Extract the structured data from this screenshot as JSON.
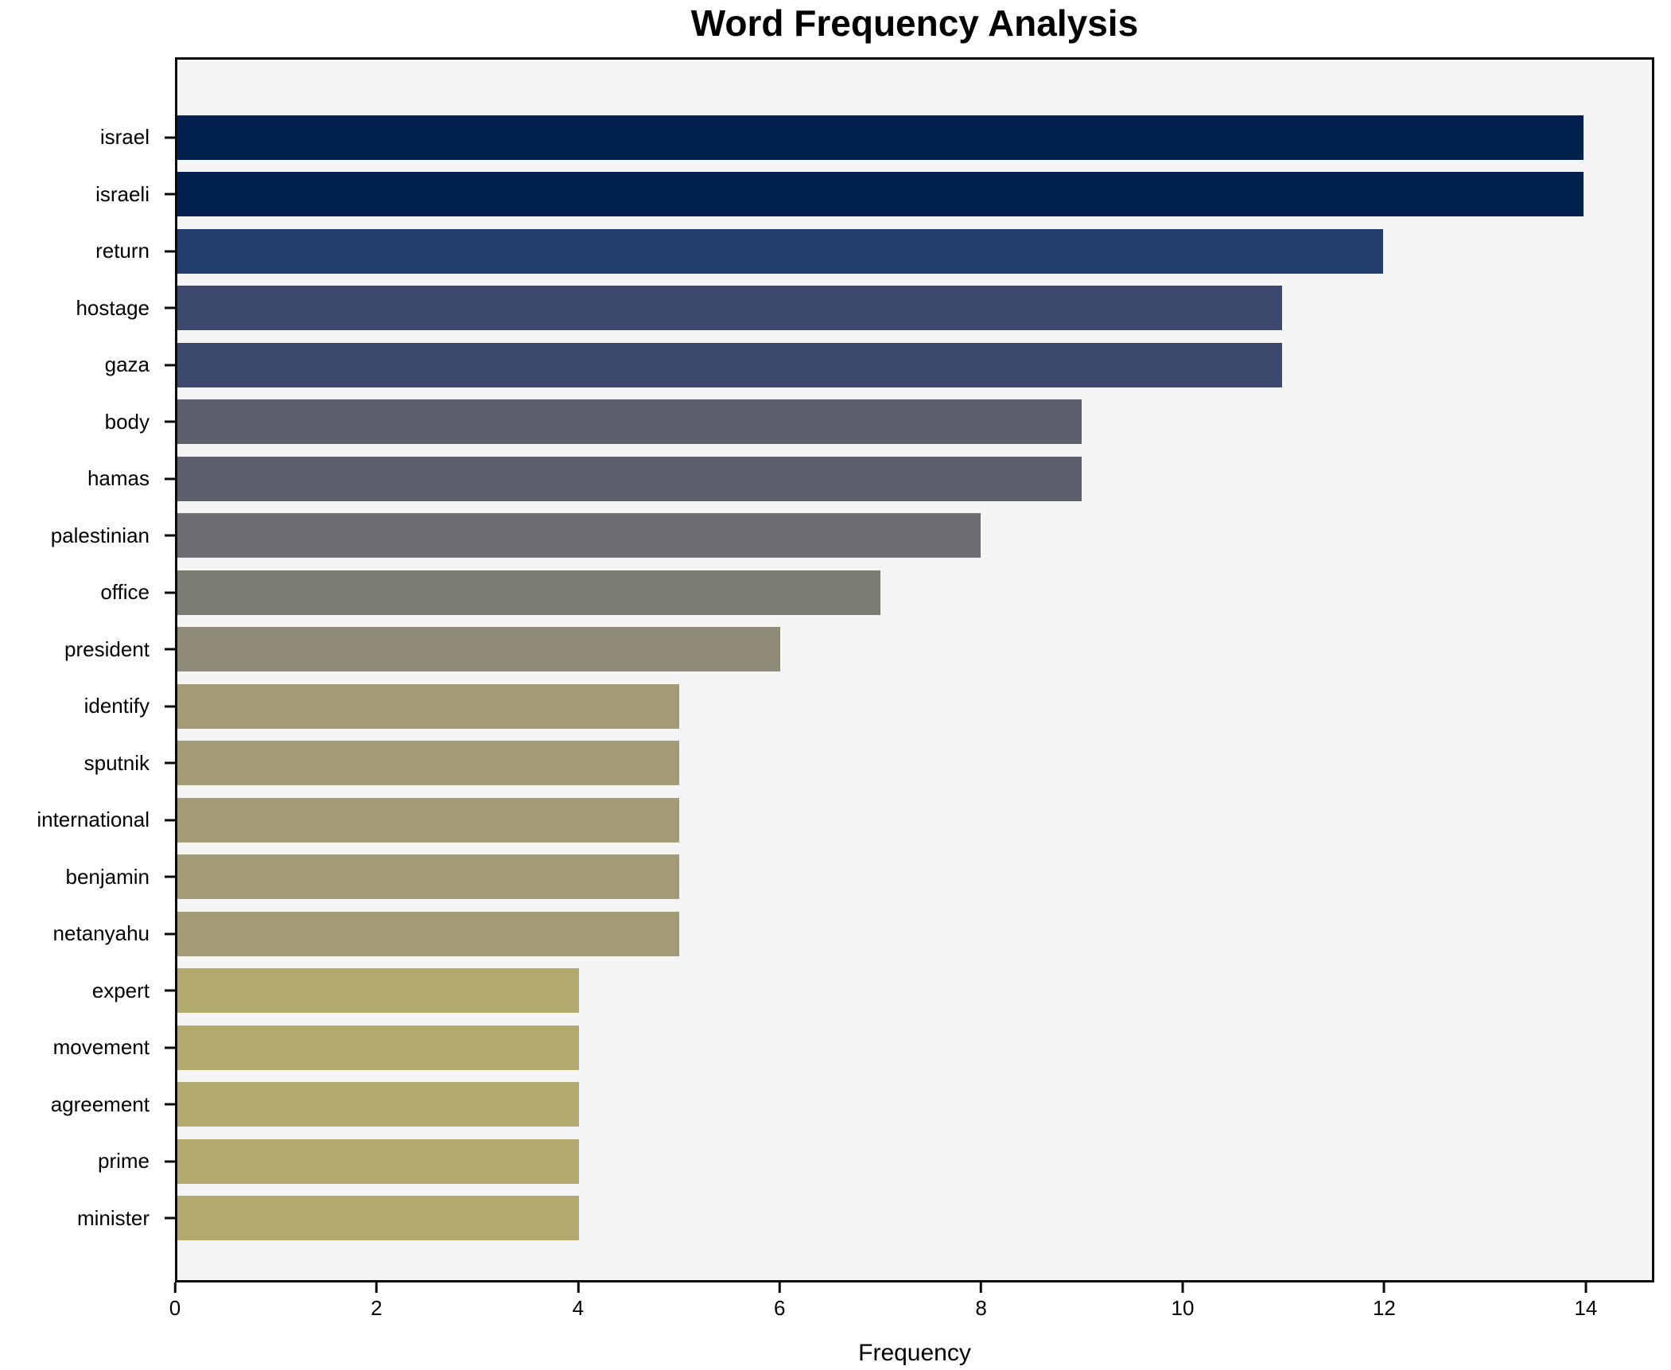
{
  "title": "Word Frequency Analysis",
  "chart_data": {
    "type": "bar",
    "orientation": "horizontal",
    "title": "Word Frequency Analysis",
    "xlabel": "Frequency",
    "ylabel": "",
    "categories": [
      "israel",
      "israeli",
      "return",
      "hostage",
      "gaza",
      "body",
      "hamas",
      "palestinian",
      "office",
      "president",
      "identify",
      "sputnik",
      "international",
      "benjamin",
      "netanyahu",
      "expert",
      "movement",
      "agreement",
      "prime",
      "minister"
    ],
    "values": [
      14,
      14,
      12,
      11,
      11,
      9,
      9,
      8,
      7,
      6,
      5,
      5,
      5,
      5,
      5,
      4,
      4,
      4,
      4,
      4
    ],
    "bar_colors": [
      "#02214f",
      "#02214f",
      "#233e6c",
      "#3c486e",
      "#3c486e",
      "#5c606c",
      "#5c606c",
      "#6e6e72",
      "#7d7c74",
      "#908b79",
      "#a39a76",
      "#a39a76",
      "#a39a76",
      "#a39a76",
      "#a39a76",
      "#b3aa6e",
      "#b3aa6e",
      "#b3aa6e",
      "#b3aa6e",
      "#b3aa6e"
    ],
    "xlim": [
      0,
      14.68
    ],
    "xticks": [
      0,
      2,
      4,
      6,
      8,
      10,
      12,
      14
    ],
    "grid": false,
    "legend": false,
    "plot_bg": "#f5f5f6",
    "figure_bg": "#ffffff",
    "spine_color": "#0a0a0a",
    "text_color": "#000000"
  }
}
